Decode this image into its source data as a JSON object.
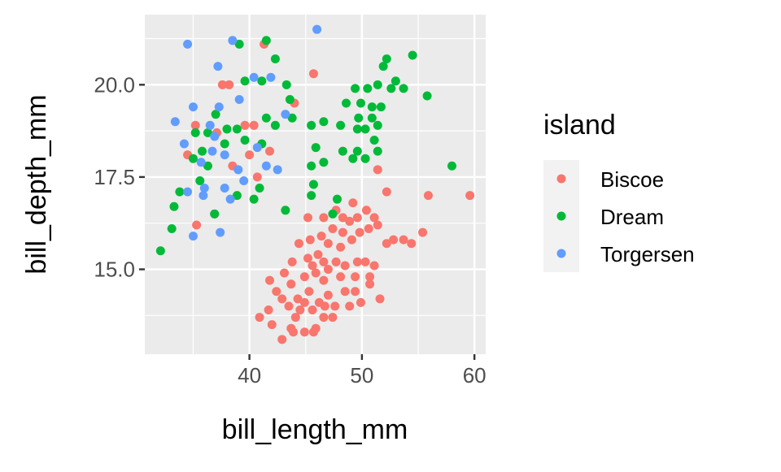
{
  "chart_data": {
    "type": "scatter",
    "xlabel": "bill_length_mm",
    "ylabel": "bill_depth_mm",
    "xlim": [
      30.7,
      61.0
    ],
    "ylim": [
      12.7,
      21.9
    ],
    "x_ticks": [
      40,
      50,
      60
    ],
    "x_tick_labels": [
      "40",
      "50",
      "60"
    ],
    "y_ticks": [
      15.0,
      17.5,
      20.0
    ],
    "y_tick_labels": [
      "15.0",
      "17.5",
      "20.0"
    ],
    "grid": true,
    "legend": {
      "title": "island",
      "placement": "right"
    },
    "series": [
      {
        "name": "Biscoe",
        "color": "#F8766D",
        "points": [
          [
            37.6,
            20.0
          ],
          [
            38.2,
            20.0
          ],
          [
            41.3,
            21.1
          ],
          [
            45.7,
            20.3
          ],
          [
            35.2,
            18.9
          ],
          [
            39.6,
            18.9
          ],
          [
            37.1,
            18.7
          ],
          [
            35.3,
            16.2
          ],
          [
            36.9,
            16.5
          ],
          [
            41.8,
            18.2
          ],
          [
            40.0,
            18.1
          ],
          [
            44.0,
            19.5
          ],
          [
            34.5,
            18.1
          ],
          [
            38.5,
            17.8
          ],
          [
            40.7,
            17.5
          ],
          [
            40.4,
            18.9
          ],
          [
            59.6,
            17.0
          ],
          [
            55.9,
            17.0
          ],
          [
            52.2,
            17.1
          ],
          [
            51.4,
            17.7
          ],
          [
            45.2,
            16.4
          ],
          [
            41.8,
            14.7
          ],
          [
            40.9,
            13.7
          ],
          [
            42.0,
            13.5
          ],
          [
            42.9,
            13.1
          ],
          [
            43.7,
            13.4
          ],
          [
            44.9,
            13.3
          ],
          [
            45.9,
            13.4
          ],
          [
            46.6,
            13.7
          ],
          [
            43.5,
            14.0
          ],
          [
            44.3,
            14.2
          ],
          [
            42.9,
            14.2
          ],
          [
            44.5,
            13.9
          ],
          [
            45.3,
            14.4
          ],
          [
            46.2,
            14.1
          ],
          [
            47.0,
            14.3
          ],
          [
            47.6,
            14.0
          ],
          [
            48.5,
            14.4
          ],
          [
            49.4,
            14.4
          ],
          [
            51.6,
            14.2
          ],
          [
            50.7,
            14.6
          ],
          [
            43.7,
            14.6
          ],
          [
            44.9,
            14.8
          ],
          [
            45.9,
            14.9
          ],
          [
            47.0,
            15.0
          ],
          [
            47.7,
            15.2
          ],
          [
            48.5,
            15.1
          ],
          [
            49.6,
            15.2
          ],
          [
            50.3,
            15.2
          ],
          [
            51.1,
            15.1
          ],
          [
            45.2,
            15.3
          ],
          [
            46.1,
            15.4
          ],
          [
            47.0,
            15.7
          ],
          [
            48.1,
            15.6
          ],
          [
            49.1,
            15.8
          ],
          [
            49.8,
            16.0
          ],
          [
            50.6,
            16.1
          ],
          [
            44.4,
            15.7
          ],
          [
            45.4,
            15.8
          ],
          [
            46.4,
            15.9
          ],
          [
            47.4,
            16.1
          ],
          [
            48.3,
            16.0
          ],
          [
            48.9,
            16.3
          ],
          [
            49.6,
            16.4
          ],
          [
            50.4,
            16.6
          ],
          [
            51.1,
            16.4
          ],
          [
            51.4,
            16.2
          ],
          [
            52.8,
            15.8
          ],
          [
            53.7,
            15.8
          ],
          [
            54.4,
            15.7
          ],
          [
            55.4,
            16.0
          ],
          [
            52.2,
            15.7
          ],
          [
            49.2,
            16.8
          ],
          [
            46.6,
            16.4
          ],
          [
            47.7,
            16.6
          ],
          [
            48.3,
            16.4
          ],
          [
            43.8,
            15.2
          ],
          [
            43.1,
            14.9
          ],
          [
            42.4,
            14.4
          ],
          [
            41.7,
            13.9
          ],
          [
            44.1,
            13.7
          ],
          [
            44.9,
            14.1
          ],
          [
            45.6,
            13.9
          ],
          [
            46.7,
            14.0
          ],
          [
            48.9,
            14.0
          ],
          [
            49.9,
            14.1
          ],
          [
            50.7,
            14.8
          ],
          [
            49.4,
            14.8
          ],
          [
            48.1,
            14.8
          ],
          [
            46.6,
            14.7
          ],
          [
            47.4,
            13.7
          ],
          [
            45.7,
            13.3
          ],
          [
            43.9,
            13.3
          ],
          [
            45.6,
            15.1
          ],
          [
            46.6,
            15.2
          ]
        ]
      },
      {
        "name": "Dream",
        "color": "#00BA38",
        "points": [
          [
            32.1,
            15.5
          ],
          [
            33.1,
            16.1
          ],
          [
            33.8,
            17.1
          ],
          [
            33.3,
            16.7
          ],
          [
            35.0,
            18.0
          ],
          [
            36.3,
            17.8
          ],
          [
            35.6,
            17.4
          ],
          [
            36.9,
            16.5
          ],
          [
            37.8,
            18.4
          ],
          [
            38.9,
            17.0
          ],
          [
            40.4,
            16.9
          ],
          [
            40.9,
            17.2
          ],
          [
            43.2,
            16.6
          ],
          [
            45.5,
            17.0
          ],
          [
            45.7,
            17.3
          ],
          [
            46.6,
            17.9
          ],
          [
            47.4,
            16.5
          ],
          [
            47.8,
            16.9
          ],
          [
            39.1,
            21.1
          ],
          [
            41.5,
            21.2
          ],
          [
            42.3,
            20.7
          ],
          [
            39.6,
            20.1
          ],
          [
            41.1,
            20.1
          ],
          [
            43.3,
            20.0
          ],
          [
            43.6,
            19.6
          ],
          [
            43.8,
            19.1
          ],
          [
            42.3,
            18.9
          ],
          [
            41.5,
            19.1
          ],
          [
            38.9,
            18.8
          ],
          [
            36.3,
            18.7
          ],
          [
            37.0,
            19.2
          ],
          [
            38.0,
            18.8
          ],
          [
            39.6,
            18.5
          ],
          [
            41.1,
            18.4
          ],
          [
            35.2,
            18.7
          ],
          [
            35.8,
            18.2
          ],
          [
            45.5,
            18.9
          ],
          [
            45.9,
            18.3
          ],
          [
            46.6,
            19.0
          ],
          [
            45.5,
            17.8
          ],
          [
            49.4,
            19.9
          ],
          [
            50.5,
            19.9
          ],
          [
            51.4,
            20.0
          ],
          [
            52.6,
            19.9
          ],
          [
            53.0,
            20.1
          ],
          [
            53.7,
            19.9
          ],
          [
            51.9,
            20.5
          ],
          [
            52.2,
            20.7
          ],
          [
            54.5,
            20.8
          ],
          [
            48.6,
            19.5
          ],
          [
            49.9,
            19.5
          ],
          [
            50.9,
            19.4
          ],
          [
            51.7,
            19.4
          ],
          [
            49.7,
            19.1
          ],
          [
            50.9,
            19.1
          ],
          [
            51.4,
            18.9
          ],
          [
            50.3,
            18.8
          ],
          [
            49.6,
            18.8
          ],
          [
            51.1,
            18.5
          ],
          [
            51.4,
            18.2
          ],
          [
            49.6,
            18.2
          ],
          [
            50.3,
            18.0
          ],
          [
            48.3,
            18.2
          ],
          [
            49.2,
            18.0
          ],
          [
            58.0,
            17.8
          ],
          [
            55.8,
            19.7
          ],
          [
            48.1,
            18.9
          ]
        ]
      },
      {
        "name": "Torgersen",
        "color": "#619CFF",
        "points": [
          [
            34.5,
            21.1
          ],
          [
            38.5,
            21.2
          ],
          [
            46.0,
            21.5
          ],
          [
            37.2,
            20.5
          ],
          [
            33.4,
            19.0
          ],
          [
            35.0,
            19.4
          ],
          [
            37.3,
            19.4
          ],
          [
            43.2,
            19.2
          ],
          [
            36.5,
            18.9
          ],
          [
            36.9,
            18.6
          ],
          [
            40.4,
            20.2
          ],
          [
            41.9,
            20.2
          ],
          [
            39.1,
            19.6
          ],
          [
            34.2,
            18.4
          ],
          [
            35.7,
            17.9
          ],
          [
            42.5,
            17.7
          ],
          [
            41.5,
            17.8
          ],
          [
            39.0,
            17.7
          ],
          [
            34.5,
            17.1
          ],
          [
            36.0,
            17.2
          ],
          [
            37.8,
            17.2
          ],
          [
            39.5,
            17.4
          ],
          [
            35.9,
            17.0
          ],
          [
            38.3,
            16.9
          ],
          [
            35.0,
            15.9
          ],
          [
            37.4,
            16.0
          ],
          [
            37.8,
            18.1
          ],
          [
            40.7,
            18.3
          ],
          [
            36.7,
            18.2
          ]
        ]
      }
    ]
  }
}
